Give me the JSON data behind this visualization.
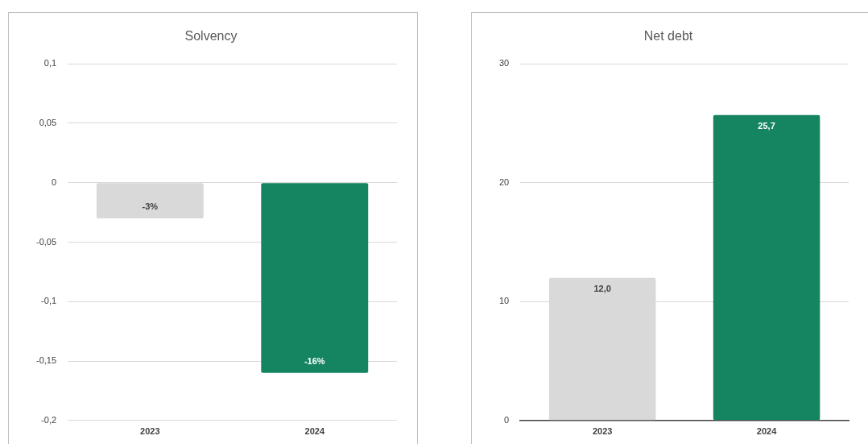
{
  "chart_data": [
    {
      "type": "bar",
      "title": "Solvency",
      "categories": [
        "2023",
        "2024"
      ],
      "values": [
        -0.03,
        -0.16
      ],
      "colors": [
        "#d9d9d9",
        "#148560"
      ],
      "value_labels": [
        "-3%",
        "-16%"
      ],
      "ylim": [
        -0.2,
        0.1
      ],
      "yticks": [
        {
          "value": -0.2,
          "label": "-0,2"
        },
        {
          "value": -0.15,
          "label": "-0,15"
        },
        {
          "value": -0.1,
          "label": "-0,1"
        },
        {
          "value": -0.05,
          "label": "-0,05"
        },
        0,
        {
          "value": 0.05,
          "label": "0,05"
        },
        {
          "value": 0.1,
          "label": "0,1"
        }
      ],
      "grid": "y",
      "legend": false
    },
    {
      "type": "bar",
      "title": "Net debt",
      "categories": [
        "2023",
        "2024"
      ],
      "values": [
        12.0,
        25.7
      ],
      "colors": [
        "#d9d9d9",
        "#148560"
      ],
      "value_labels": [
        "12,0",
        "25,7"
      ],
      "ylim": [
        0,
        30
      ],
      "yticks": [
        0,
        10,
        20,
        30
      ],
      "grid": "y",
      "legend": false
    }
  ]
}
